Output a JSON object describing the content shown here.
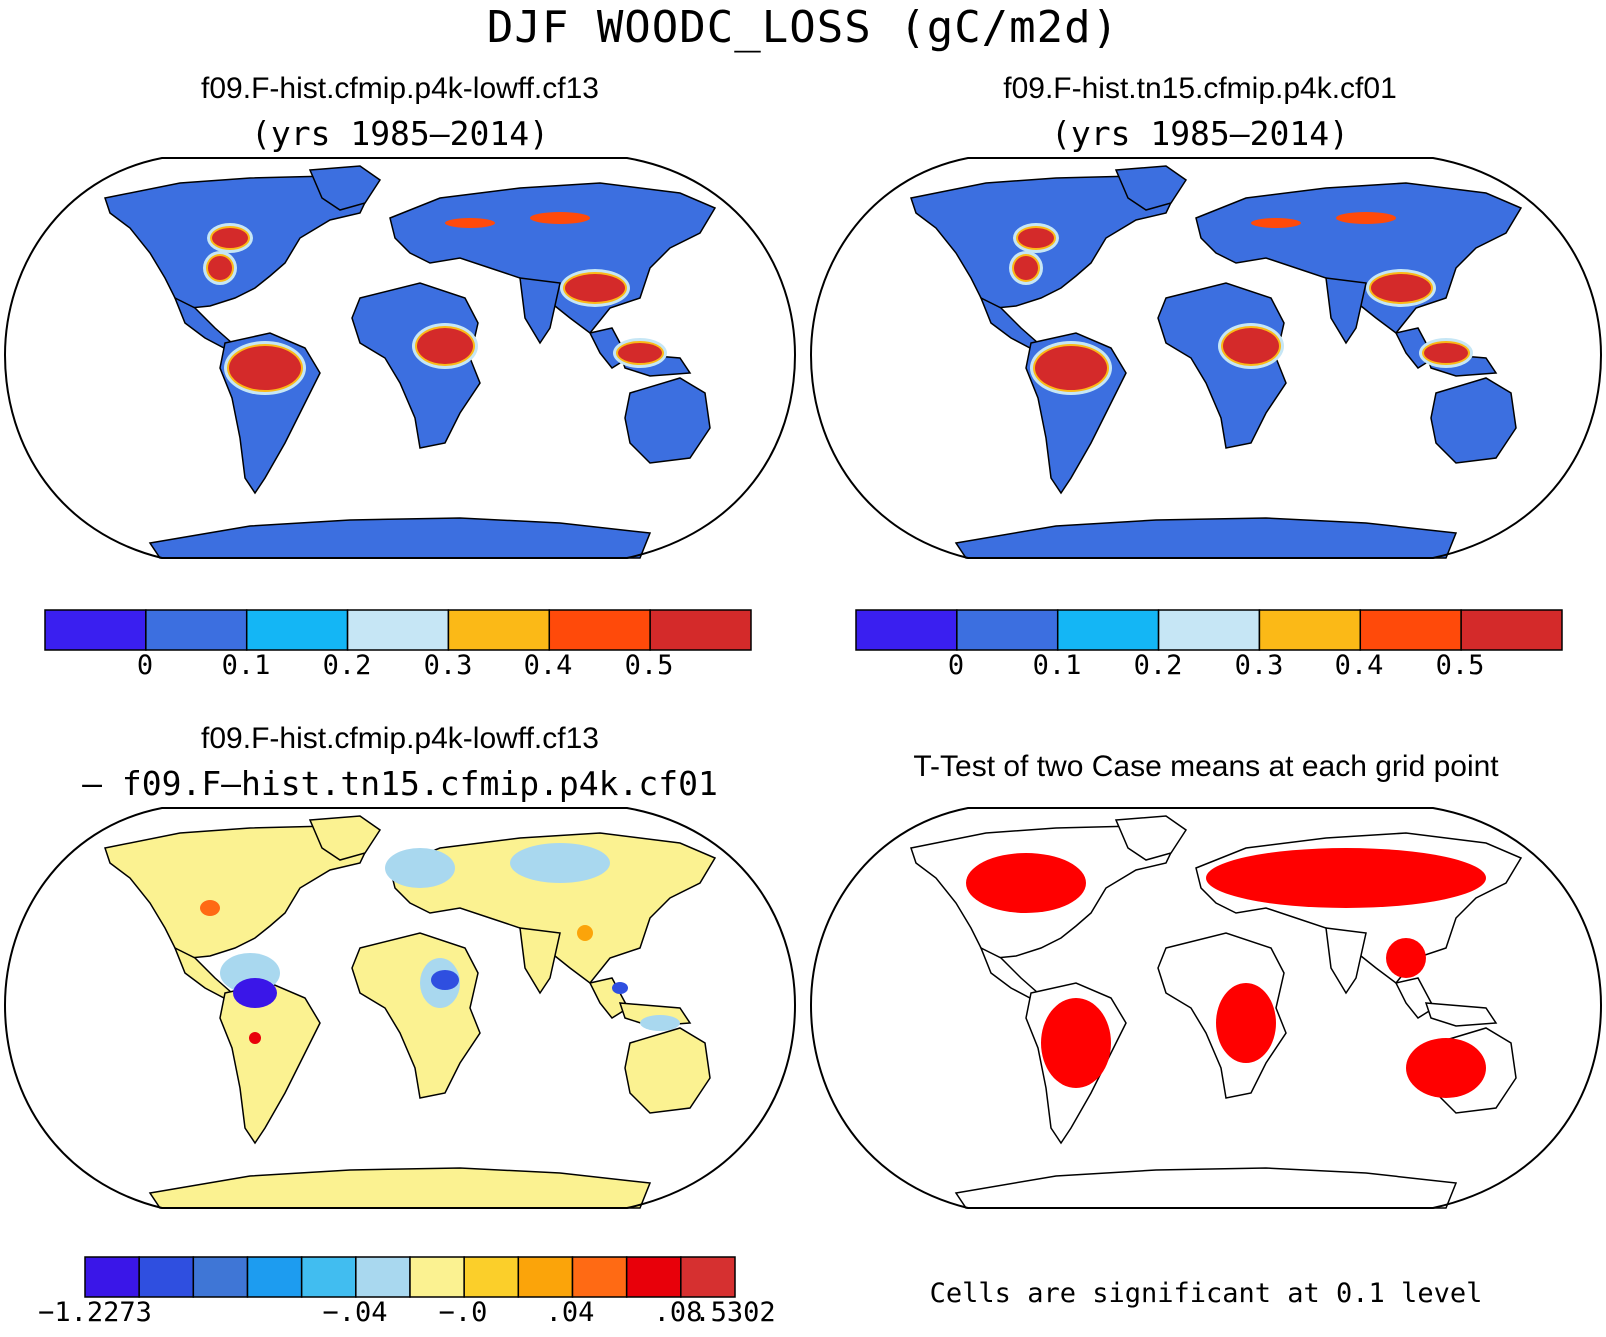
{
  "figure": {
    "title": "DJF WOODC_LOSS (gC/m2d)"
  },
  "panels": {
    "top_left": {
      "title": "f09.F-hist.cfmip.p4k-lowff.cf13",
      "subtitle": "(yrs 1985–2014)"
    },
    "top_right": {
      "title": "f09.F-hist.tn15.cfmip.p4k.cf01",
      "subtitle": "(yrs 1985–2014)"
    },
    "bottom_left": {
      "title": "f09.F-hist.cfmip.p4k-lowff.cf13",
      "subtitle": "– f09.F–hist.tn15.cfmip.p4k.cf01"
    },
    "bottom_right": {
      "title": "T-Test of two Case means at each grid point",
      "note": "Cells are significant at 0.1 level"
    }
  },
  "colorbars": {
    "abs": {
      "colors": [
        "#3a1ff0",
        "#3c6fe0",
        "#14b6f5",
        "#c6e6f5",
        "#fbb917",
        "#ff4a0a",
        "#d42a2a"
      ],
      "labels": [
        "0",
        "0.1",
        "0.2",
        "0.3",
        "0.4",
        "0.5"
      ]
    },
    "diff": {
      "colors": [
        "#3a16e8",
        "#2f4fe0",
        "#3f76d6",
        "#1d9cf0",
        "#41bdf0",
        "#a9d8ef",
        "#fbf291",
        "#fbcf2a",
        "#fba40a",
        "#ff6a14",
        "#e8000a",
        "#d63030"
      ],
      "labels": [
        "−1.2273",
        "−.04",
        "−.0",
        ".04",
        ".08",
        ".5302"
      ]
    }
  },
  "map_colors": {
    "land_base_abs": "#3c6fe0",
    "high_abs": "#d42a2a",
    "orange_abs": "#ff4a0a",
    "yellow_abs": "#fbb917",
    "light_abs": "#c6e6f5",
    "land_base_diff": "#fbf291",
    "cool_diff": "#a9d8ef",
    "sig_fill": "#ff0000"
  }
}
